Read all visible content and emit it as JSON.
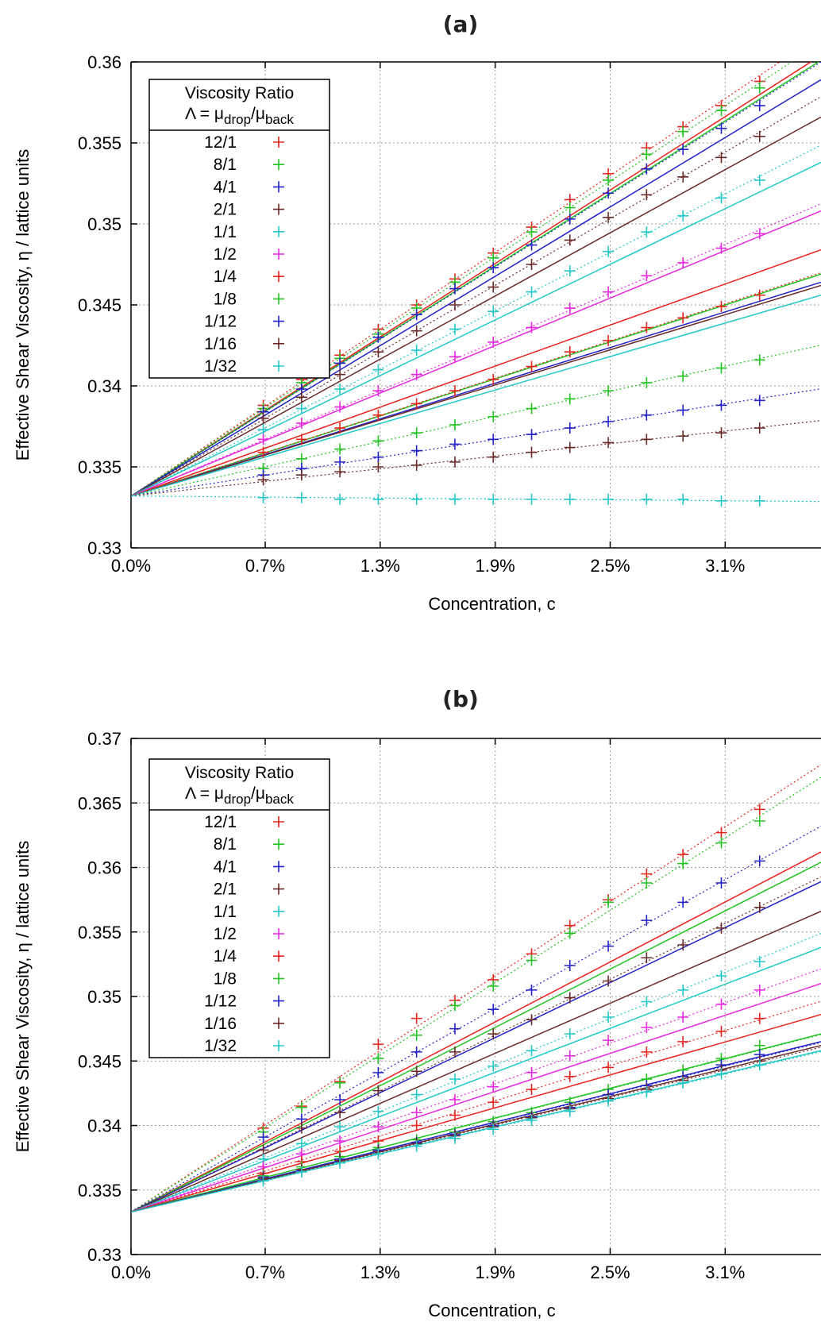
{
  "chart_data": [
    {
      "type": "scatter",
      "title": "(a)",
      "xlabel": "Concentration, c",
      "ylabel": "Effective Shear Viscosity, η / lattice units",
      "xlim": [
        0.0,
        3.6
      ],
      "ylim": [
        0.33,
        0.36
      ],
      "xticks": [
        0.0,
        0.7,
        1.3,
        1.9,
        2.5,
        3.1
      ],
      "xtick_labels": [
        "0.0%",
        "0.7%",
        "1.3%",
        "1.9%",
        "2.5%",
        "3.1%"
      ],
      "yticks": [
        0.33,
        0.335,
        0.34,
        0.345,
        0.35,
        0.355,
        0.36
      ],
      "ytick_labels": [
        "0.33",
        "0.335",
        "0.34",
        "0.345",
        "0.35",
        "0.355",
        "0.36"
      ],
      "grid": true,
      "legend": {
        "placement": "top-left",
        "title_line1": "Viscosity Ratio",
        "title_line2_prefix": "Λ = μ",
        "title_line2_sub1": "drop",
        "title_line2_mid": "/μ",
        "title_line2_sub2": "back"
      },
      "x": [
        0.69,
        0.89,
        1.09,
        1.29,
        1.49,
        1.69,
        1.89,
        2.09,
        2.29,
        2.49,
        2.69,
        2.88,
        3.08,
        3.28
      ],
      "series": [
        {
          "name": "12/1",
          "color": "#e8231e",
          "values": [
            0.3388,
            0.3404,
            0.3419,
            0.3435,
            0.345,
            0.3466,
            0.3482,
            0.3498,
            0.3515,
            0.3531,
            0.3547,
            0.356,
            0.3573,
            0.3588
          ]
        },
        {
          "name": "8/1",
          "color": "#22c322",
          "values": [
            0.3386,
            0.3402,
            0.3417,
            0.3432,
            0.3448,
            0.3464,
            0.3479,
            0.3495,
            0.351,
            0.3527,
            0.3543,
            0.3557,
            0.357,
            0.3584
          ]
        },
        {
          "name": "4/1",
          "color": "#2323c8",
          "values": [
            0.3384,
            0.3398,
            0.3414,
            0.343,
            0.3444,
            0.346,
            0.3473,
            0.3487,
            0.3503,
            0.3519,
            0.3534,
            0.3546,
            0.3559,
            0.3573
          ]
        },
        {
          "name": "2/1",
          "color": "#6b2a2a",
          "values": [
            0.338,
            0.3393,
            0.3407,
            0.3421,
            0.3434,
            0.345,
            0.3461,
            0.3475,
            0.349,
            0.3504,
            0.3518,
            0.3529,
            0.3541,
            0.3554
          ]
        },
        {
          "name": "1/1",
          "color": "#22c8c8",
          "values": [
            0.3373,
            0.3386,
            0.3398,
            0.341,
            0.3422,
            0.3435,
            0.3446,
            0.3458,
            0.3471,
            0.3483,
            0.3495,
            0.3505,
            0.3516,
            0.3527
          ]
        },
        {
          "name": "1/2",
          "color": "#e628e0",
          "values": [
            0.3367,
            0.3377,
            0.3387,
            0.3397,
            0.3407,
            0.3418,
            0.3427,
            0.3436,
            0.3448,
            0.3458,
            0.3468,
            0.3476,
            0.3485,
            0.3494
          ]
        },
        {
          "name": "1/4",
          "color": "#e8231e",
          "values": [
            0.3359,
            0.3367,
            0.3374,
            0.3382,
            0.3389,
            0.3397,
            0.3404,
            0.3412,
            0.3421,
            0.3428,
            0.3436,
            0.3442,
            0.3449,
            0.3456
          ]
        },
        {
          "name": "1/8",
          "color": "#22c322",
          "values": [
            0.3349,
            0.3355,
            0.3361,
            0.3366,
            0.3371,
            0.3376,
            0.3381,
            0.3386,
            0.3392,
            0.3397,
            0.3402,
            0.3406,
            0.3411,
            0.3416
          ]
        },
        {
          "name": "1/12",
          "color": "#2323c8",
          "values": [
            0.3345,
            0.3349,
            0.3353,
            0.3356,
            0.336,
            0.3364,
            0.3367,
            0.337,
            0.3374,
            0.3378,
            0.3382,
            0.3385,
            0.3388,
            0.3391
          ]
        },
        {
          "name": "1/16",
          "color": "#6b2a2a",
          "values": [
            0.3342,
            0.3345,
            0.3347,
            0.335,
            0.3351,
            0.3353,
            0.3356,
            0.3359,
            0.3362,
            0.3365,
            0.3367,
            0.3369,
            0.3371,
            0.3374
          ]
        },
        {
          "name": "1/32",
          "color": "#22c8c8",
          "values": [
            0.3331,
            0.3331,
            0.333,
            0.333,
            0.333,
            0.333,
            0.333,
            0.333,
            0.333,
            0.333,
            0.333,
            0.333,
            0.3329,
            0.3329
          ]
        }
      ],
      "fit_lines": [
        {
          "color": "#e8231e",
          "y0": 0.3332,
          "y_end": 0.3604
        },
        {
          "color": "#22c322",
          "y0": 0.3332,
          "y_end": 0.3601
        },
        {
          "color": "#2323c8",
          "y0": 0.3332,
          "y_end": 0.3589
        },
        {
          "color": "#6b2a2a",
          "y0": 0.3332,
          "y_end": 0.3566
        },
        {
          "color": "#22c8c8",
          "y0": 0.3332,
          "y_end": 0.3538
        },
        {
          "color": "#e628e0",
          "y0": 0.3332,
          "y_end": 0.3508
        },
        {
          "color": "#e8231e",
          "y0": 0.3332,
          "y_end": 0.3484
        },
        {
          "color": "#22c322",
          "y0": 0.3332,
          "y_end": 0.3469
        },
        {
          "color": "#2323c8",
          "y0": 0.3332,
          "y_end": 0.3464
        },
        {
          "color": "#6b2a2a",
          "y0": 0.3332,
          "y_end": 0.3462
        },
        {
          "color": "#22c8c8",
          "y0": 0.3332,
          "y_end": 0.3456
        }
      ]
    },
    {
      "type": "scatter",
      "title": "(b)",
      "xlabel": "Concentration, c",
      "ylabel": "Effective Shear Viscosity, η / lattice units",
      "xlim": [
        0.0,
        3.6
      ],
      "ylim": [
        0.33,
        0.37
      ],
      "xticks": [
        0.0,
        0.7,
        1.3,
        1.9,
        2.5,
        3.1
      ],
      "xtick_labels": [
        "0.0%",
        "0.7%",
        "1.3%",
        "1.9%",
        "2.5%",
        "3.1%"
      ],
      "yticks": [
        0.33,
        0.335,
        0.34,
        0.345,
        0.35,
        0.355,
        0.36,
        0.365,
        0.37
      ],
      "ytick_labels": [
        "0.33",
        "0.335",
        "0.34",
        "0.345",
        "0.35",
        "0.355",
        "0.36",
        "0.365",
        "0.37"
      ],
      "grid": true,
      "legend": {
        "placement": "top-left",
        "title_line1": "Viscosity Ratio",
        "title_line2_prefix": "Λ = μ",
        "title_line2_sub1": "drop",
        "title_line2_mid": "/μ",
        "title_line2_sub2": "back"
      },
      "x": [
        0.69,
        0.89,
        1.09,
        1.29,
        1.49,
        1.69,
        1.89,
        2.09,
        2.29,
        2.49,
        2.69,
        2.88,
        3.08,
        3.28
      ],
      "series": [
        {
          "name": "12/1",
          "color": "#e8231e",
          "values": [
            0.3398,
            0.3415,
            0.3434,
            0.3463,
            0.3483,
            0.3497,
            0.3513,
            0.3533,
            0.3555,
            0.3575,
            0.3595,
            0.361,
            0.3627,
            0.3645
          ]
        },
        {
          "name": "8/1",
          "color": "#22c322",
          "values": [
            0.3395,
            0.3414,
            0.3433,
            0.3452,
            0.347,
            0.3493,
            0.3508,
            0.3528,
            0.3549,
            0.3573,
            0.3588,
            0.3603,
            0.3619,
            0.3636
          ]
        },
        {
          "name": "4/1",
          "color": "#2323c8",
          "values": [
            0.3391,
            0.3405,
            0.342,
            0.3441,
            0.3457,
            0.3475,
            0.349,
            0.3505,
            0.3524,
            0.3539,
            0.3559,
            0.3573,
            0.3588,
            0.3605
          ]
        },
        {
          "name": "2/1",
          "color": "#6b2a2a",
          "values": [
            0.3381,
            0.3398,
            0.341,
            0.3427,
            0.3442,
            0.3457,
            0.3471,
            0.3482,
            0.3499,
            0.3512,
            0.353,
            0.354,
            0.3553,
            0.3569
          ]
        },
        {
          "name": "1/1",
          "color": "#22c8c8",
          "values": [
            0.3374,
            0.3386,
            0.3399,
            0.3411,
            0.3424,
            0.3436,
            0.3446,
            0.3458,
            0.3471,
            0.3484,
            0.3496,
            0.3505,
            0.3516,
            0.3527
          ]
        },
        {
          "name": "1/2",
          "color": "#e628e0",
          "values": [
            0.3368,
            0.3378,
            0.3388,
            0.3399,
            0.341,
            0.342,
            0.343,
            0.3441,
            0.3454,
            0.3466,
            0.3476,
            0.3484,
            0.3494,
            0.3505
          ]
        },
        {
          "name": "1/4",
          "color": "#e8231e",
          "values": [
            0.3363,
            0.3372,
            0.338,
            0.3388,
            0.34,
            0.3408,
            0.3418,
            0.3428,
            0.3438,
            0.3445,
            0.3457,
            0.3465,
            0.3473,
            0.3483
          ]
        },
        {
          "name": "1/8",
          "color": "#22c322",
          "values": [
            0.3361,
            0.3368,
            0.3376,
            0.3383,
            0.3389,
            0.3395,
            0.3403,
            0.341,
            0.3418,
            0.3428,
            0.3436,
            0.3443,
            0.3452,
            0.3462
          ]
        },
        {
          "name": "1/12",
          "color": "#2323c8",
          "values": [
            0.336,
            0.3366,
            0.3374,
            0.3381,
            0.3387,
            0.3393,
            0.34,
            0.3407,
            0.3414,
            0.3424,
            0.3431,
            0.3438,
            0.3447,
            0.3455
          ]
        },
        {
          "name": "1/16",
          "color": "#6b2a2a",
          "values": [
            0.3359,
            0.3366,
            0.3373,
            0.338,
            0.3386,
            0.3392,
            0.3399,
            0.3406,
            0.3413,
            0.3421,
            0.3428,
            0.3435,
            0.3443,
            0.345
          ]
        },
        {
          "name": "1/32",
          "color": "#22c8c8",
          "values": [
            0.3357,
            0.3364,
            0.3371,
            0.3378,
            0.3384,
            0.339,
            0.3397,
            0.3404,
            0.3411,
            0.3419,
            0.3426,
            0.3433,
            0.344,
            0.3447
          ]
        }
      ],
      "fit_lines": [
        {
          "color": "#e8231e",
          "y0": 0.3333,
          "y_end": 0.3612
        },
        {
          "color": "#22c322",
          "y0": 0.3333,
          "y_end": 0.3604
        },
        {
          "color": "#2323c8",
          "y0": 0.3333,
          "y_end": 0.3589
        },
        {
          "color": "#6b2a2a",
          "y0": 0.3333,
          "y_end": 0.3566
        },
        {
          "color": "#22c8c8",
          "y0": 0.3333,
          "y_end": 0.3538
        },
        {
          "color": "#e628e0",
          "y0": 0.3333,
          "y_end": 0.351
        },
        {
          "color": "#e8231e",
          "y0": 0.3333,
          "y_end": 0.3486
        },
        {
          "color": "#22c322",
          "y0": 0.3333,
          "y_end": 0.3471
        },
        {
          "color": "#2323c8",
          "y0": 0.3333,
          "y_end": 0.3465
        },
        {
          "color": "#6b2a2a",
          "y0": 0.3333,
          "y_end": 0.3462
        },
        {
          "color": "#22c8c8",
          "y0": 0.3333,
          "y_end": 0.3458
        }
      ]
    }
  ]
}
